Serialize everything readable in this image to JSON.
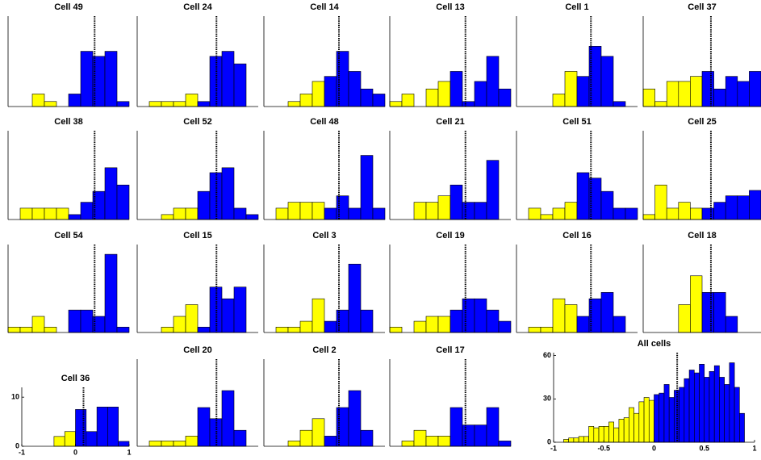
{
  "chart_data": [
    {
      "type": "histogram",
      "title": "Cell 49",
      "bins": [
        -1,
        -0.8,
        -0.6,
        -0.4,
        -0.2,
        0,
        0.2,
        0.4,
        0.6,
        0.8,
        1
      ],
      "values": [
        0,
        0,
        2.5,
        1,
        0,
        2.5,
        11,
        10,
        11,
        1
      ],
      "colors": [
        "#ffff00",
        "#ffff00",
        "#ffff00",
        "#ffff00",
        "#ffff00",
        "#0000ff",
        "#0000ff",
        "#0000ff",
        "#0000ff",
        "#0000ff"
      ],
      "threshold": 0.43,
      "xlim": [
        -1,
        1
      ],
      "ylim": [
        0,
        18
      ]
    },
    {
      "type": "histogram",
      "title": "Cell 24",
      "bins": [
        -1,
        -0.8,
        -0.6,
        -0.4,
        -0.2,
        0,
        0.2,
        0.4,
        0.6,
        0.8,
        1
      ],
      "values": [
        0,
        1,
        1,
        1,
        2.5,
        1,
        10,
        11,
        8.5,
        0
      ],
      "colors": [
        "#ffff00",
        "#ffff00",
        "#ffff00",
        "#ffff00",
        "#ffff00",
        "#0000ff",
        "#0000ff",
        "#0000ff",
        "#0000ff",
        "#0000ff"
      ],
      "threshold": 0.31,
      "xlim": [
        -1,
        1
      ],
      "ylim": [
        0,
        18
      ]
    },
    {
      "type": "histogram",
      "title": "Cell 14",
      "bins": [
        -1,
        -0.8,
        -0.6,
        -0.4,
        -0.2,
        0,
        0.2,
        0.4,
        0.6,
        0.8,
        1
      ],
      "values": [
        0,
        0,
        1,
        2.5,
        5,
        6,
        11,
        7,
        3.5,
        2.5
      ],
      "colors": [
        "#ffff00",
        "#ffff00",
        "#ffff00",
        "#ffff00",
        "#ffff00",
        "#0000ff",
        "#0000ff",
        "#0000ff",
        "#0000ff",
        "#0000ff"
      ],
      "threshold": 0.24,
      "xlim": [
        -1,
        1
      ],
      "ylim": [
        0,
        18
      ]
    },
    {
      "type": "histogram",
      "title": "Cell 13",
      "bins": [
        -1,
        -0.8,
        -0.6,
        -0.4,
        -0.2,
        0,
        0.2,
        0.4,
        0.6,
        0.8,
        1
      ],
      "values": [
        1,
        2.5,
        0,
        3.5,
        5,
        7,
        1,
        5,
        10,
        3.5
      ],
      "colors": [
        "#ffff00",
        "#ffff00",
        "#ffff00",
        "#ffff00",
        "#ffff00",
        "#0000ff",
        "#0000ff",
        "#0000ff",
        "#0000ff",
        "#0000ff"
      ],
      "threshold": 0.25,
      "xlim": [
        -1,
        1
      ],
      "ylim": [
        0,
        18
      ]
    },
    {
      "type": "histogram",
      "title": "Cell 1",
      "bins": [
        -1,
        -0.8,
        -0.6,
        -0.4,
        -0.2,
        0,
        0.2,
        0.4,
        0.6,
        0.8,
        1
      ],
      "values": [
        0,
        0,
        0,
        2.5,
        7,
        6,
        12,
        10,
        1,
        0
      ],
      "colors": [
        "#ffff00",
        "#ffff00",
        "#ffff00",
        "#ffff00",
        "#ffff00",
        "#0000ff",
        "#0000ff",
        "#0000ff",
        "#0000ff",
        "#0000ff"
      ],
      "threshold": 0.23,
      "xlim": [
        -1,
        1
      ],
      "ylim": [
        0,
        18
      ]
    },
    {
      "type": "histogram",
      "title": "Cell 37",
      "bins": [
        -1,
        -0.8,
        -0.6,
        -0.4,
        -0.2,
        0,
        0.2,
        0.4,
        0.6,
        0.8,
        1
      ],
      "values": [
        3.5,
        1,
        5,
        5,
        6,
        7,
        3.5,
        6,
        5,
        7
      ],
      "colors": [
        "#ffff00",
        "#ffff00",
        "#ffff00",
        "#ffff00",
        "#ffff00",
        "#0000ff",
        "#0000ff",
        "#0000ff",
        "#0000ff",
        "#0000ff"
      ],
      "threshold": 0.15,
      "xlim": [
        -1,
        1
      ],
      "ylim": [
        0,
        18
      ]
    },
    {
      "type": "histogram",
      "title": "Cell 38",
      "bins": [
        -1,
        -0.8,
        -0.6,
        -0.4,
        -0.2,
        0,
        0.2,
        0.4,
        0.6,
        0.8,
        1
      ],
      "values": [
        0,
        2.3,
        2.3,
        2.3,
        2.3,
        1,
        3.5,
        5.7,
        10.5,
        7
      ],
      "colors": [
        "#ffff00",
        "#ffff00",
        "#ffff00",
        "#ffff00",
        "#ffff00",
        "#0000ff",
        "#0000ff",
        "#0000ff",
        "#0000ff",
        "#0000ff"
      ],
      "threshold": 0.43,
      "xlim": [
        -1,
        1
      ],
      "ylim": [
        0,
        18
      ]
    },
    {
      "type": "histogram",
      "title": "Cell 52",
      "bins": [
        -1,
        -0.8,
        -0.6,
        -0.4,
        -0.2,
        0,
        0.2,
        0.4,
        0.6,
        0.8,
        1
      ],
      "values": [
        0,
        0,
        1,
        2.3,
        2.3,
        5.7,
        9.5,
        10.5,
        2.3,
        1
      ],
      "colors": [
        "#ffff00",
        "#ffff00",
        "#ffff00",
        "#ffff00",
        "#ffff00",
        "#0000ff",
        "#0000ff",
        "#0000ff",
        "#0000ff",
        "#0000ff"
      ],
      "threshold": 0.31,
      "xlim": [
        -1,
        1
      ],
      "ylim": [
        0,
        18
      ]
    },
    {
      "type": "histogram",
      "title": "Cell 48",
      "bins": [
        -1,
        -0.8,
        -0.6,
        -0.4,
        -0.2,
        0,
        0.2,
        0.4,
        0.6,
        0.8,
        1
      ],
      "values": [
        0,
        2.3,
        3.5,
        3.5,
        3.5,
        2.3,
        4.8,
        2.3,
        13,
        2.3
      ],
      "colors": [
        "#ffff00",
        "#ffff00",
        "#ffff00",
        "#ffff00",
        "#ffff00",
        "#0000ff",
        "#0000ff",
        "#0000ff",
        "#0000ff",
        "#0000ff"
      ],
      "threshold": 0.24,
      "xlim": [
        -1,
        1
      ],
      "ylim": [
        0,
        18
      ]
    },
    {
      "type": "histogram",
      "title": "Cell 21",
      "bins": [
        -1,
        -0.8,
        -0.6,
        -0.4,
        -0.2,
        0,
        0.2,
        0.4,
        0.6,
        0.8,
        1
      ],
      "values": [
        0,
        0,
        3.5,
        3.5,
        4.8,
        7,
        3.5,
        3.5,
        12,
        0
      ],
      "colors": [
        "#ffff00",
        "#ffff00",
        "#ffff00",
        "#ffff00",
        "#ffff00",
        "#0000ff",
        "#0000ff",
        "#0000ff",
        "#0000ff",
        "#0000ff"
      ],
      "threshold": 0.25,
      "xlim": [
        -1,
        1
      ],
      "ylim": [
        0,
        18
      ]
    },
    {
      "type": "histogram",
      "title": "Cell 51",
      "bins": [
        -1,
        -0.8,
        -0.6,
        -0.4,
        -0.2,
        0,
        0.2,
        0.4,
        0.6,
        0.8,
        1
      ],
      "values": [
        0,
        2.3,
        1,
        2.3,
        3.5,
        9.5,
        8.4,
        5.7,
        2.3,
        2.3
      ],
      "colors": [
        "#ffff00",
        "#ffff00",
        "#ffff00",
        "#ffff00",
        "#ffff00",
        "#0000ff",
        "#0000ff",
        "#0000ff",
        "#0000ff",
        "#0000ff"
      ],
      "threshold": 0.23,
      "xlim": [
        -1,
        1
      ],
      "ylim": [
        0,
        18
      ]
    },
    {
      "type": "histogram",
      "title": "Cell 25",
      "bins": [
        -1,
        -0.8,
        -0.6,
        -0.4,
        -0.2,
        0,
        0.2,
        0.4,
        0.6,
        0.8,
        1
      ],
      "values": [
        1,
        7,
        2.3,
        3.5,
        2.3,
        2.3,
        3.5,
        4.8,
        4.8,
        5.9
      ],
      "colors": [
        "#ffff00",
        "#ffff00",
        "#ffff00",
        "#ffff00",
        "#ffff00",
        "#0000ff",
        "#0000ff",
        "#0000ff",
        "#0000ff",
        "#0000ff"
      ],
      "threshold": 0.15,
      "xlim": [
        -1,
        1
      ],
      "ylim": [
        0,
        18
      ]
    },
    {
      "type": "histogram",
      "title": "Cell 54",
      "bins": [
        -1,
        -0.8,
        -0.6,
        -0.4,
        -0.2,
        0,
        0.2,
        0.4,
        0.6,
        0.8,
        1
      ],
      "values": [
        1.1,
        1.1,
        3.3,
        1.1,
        0,
        4.6,
        4.6,
        3.3,
        16,
        1.1
      ],
      "colors": [
        "#ffff00",
        "#ffff00",
        "#ffff00",
        "#ffff00",
        "#ffff00",
        "#0000ff",
        "#0000ff",
        "#0000ff",
        "#0000ff",
        "#0000ff"
      ],
      "threshold": 0.43,
      "xlim": [
        -1,
        1
      ],
      "ylim": [
        0,
        18
      ]
    },
    {
      "type": "histogram",
      "title": "Cell 15",
      "bins": [
        -1,
        -0.8,
        -0.6,
        -0.4,
        -0.2,
        0,
        0.2,
        0.4,
        0.6,
        0.8,
        1
      ],
      "values": [
        0,
        0,
        1.1,
        3.3,
        5.7,
        1.1,
        9.3,
        6.9,
        9.3,
        0
      ],
      "colors": [
        "#ffff00",
        "#ffff00",
        "#ffff00",
        "#ffff00",
        "#ffff00",
        "#0000ff",
        "#0000ff",
        "#0000ff",
        "#0000ff",
        "#0000ff"
      ],
      "threshold": 0.31,
      "xlim": [
        -1,
        1
      ],
      "ylim": [
        0,
        18
      ]
    },
    {
      "type": "histogram",
      "title": "Cell 3",
      "bins": [
        -1,
        -0.8,
        -0.6,
        -0.4,
        -0.2,
        0,
        0.2,
        0.4,
        0.6,
        0.8,
        1
      ],
      "values": [
        0,
        1.1,
        1.1,
        2.3,
        6.9,
        2.3,
        4.6,
        14,
        4.6,
        0
      ],
      "colors": [
        "#ffff00",
        "#ffff00",
        "#ffff00",
        "#ffff00",
        "#ffff00",
        "#0000ff",
        "#0000ff",
        "#0000ff",
        "#0000ff",
        "#0000ff"
      ],
      "threshold": 0.24,
      "xlim": [
        -1,
        1
      ],
      "ylim": [
        0,
        18
      ]
    },
    {
      "type": "histogram",
      "title": "Cell 19",
      "bins": [
        -1,
        -0.8,
        -0.6,
        -0.4,
        -0.2,
        0,
        0.2,
        0.4,
        0.6,
        0.8,
        1
      ],
      "values": [
        1.1,
        0,
        2.3,
        3.3,
        3.3,
        4.6,
        6.9,
        6.9,
        4.6,
        2.3
      ],
      "colors": [
        "#ffff00",
        "#ffff00",
        "#ffff00",
        "#ffff00",
        "#ffff00",
        "#0000ff",
        "#0000ff",
        "#0000ff",
        "#0000ff",
        "#0000ff"
      ],
      "threshold": 0.25,
      "xlim": [
        -1,
        1
      ],
      "ylim": [
        0,
        18
      ]
    },
    {
      "type": "histogram",
      "title": "Cell 16",
      "bins": [
        -1,
        -0.8,
        -0.6,
        -0.4,
        -0.2,
        0,
        0.2,
        0.4,
        0.6,
        0.8,
        1
      ],
      "values": [
        0,
        1.1,
        1.1,
        6.9,
        5.7,
        3.3,
        6.9,
        8.2,
        3.3,
        0
      ],
      "colors": [
        "#ffff00",
        "#ffff00",
        "#ffff00",
        "#ffff00",
        "#ffff00",
        "#0000ff",
        "#0000ff",
        "#0000ff",
        "#0000ff",
        "#0000ff"
      ],
      "threshold": 0.23,
      "xlim": [
        -1,
        1
      ],
      "ylim": [
        0,
        18
      ]
    },
    {
      "type": "histogram",
      "title": "Cell 18",
      "bins": [
        -1,
        -0.8,
        -0.6,
        -0.4,
        -0.2,
        0,
        0.2,
        0.4,
        0.6,
        0.8,
        1
      ],
      "values": [
        0,
        0,
        0,
        5.7,
        11.6,
        8.2,
        8.2,
        3.3,
        0,
        0
      ],
      "colors": [
        "#ffff00",
        "#ffff00",
        "#ffff00",
        "#ffff00",
        "#ffff00",
        "#0000ff",
        "#0000ff",
        "#0000ff",
        "#0000ff",
        "#0000ff"
      ],
      "threshold": 0.15,
      "xlim": [
        -1,
        1
      ],
      "ylim": [
        0,
        18
      ]
    },
    {
      "type": "histogram",
      "title": "Cell 36",
      "bins": [
        -1,
        -0.8,
        -0.6,
        -0.4,
        -0.2,
        0,
        0.2,
        0.4,
        0.6,
        0.8,
        1
      ],
      "values": [
        0,
        0,
        0,
        2,
        3,
        7.5,
        3,
        8,
        8,
        1
      ],
      "colors": [
        "#ffff00",
        "#ffff00",
        "#ffff00",
        "#ffff00",
        "#ffff00",
        "#0000ff",
        "#0000ff",
        "#0000ff",
        "#0000ff",
        "#0000ff"
      ],
      "threshold": 0.15,
      "xlim": [
        -1,
        1
      ],
      "ylim": [
        0,
        12
      ],
      "xticks": [
        -1,
        0,
        1
      ],
      "yticks": [
        0,
        10
      ]
    },
    {
      "type": "histogram",
      "title": "Cell 20",
      "bins": [
        -1,
        -0.8,
        -0.6,
        -0.4,
        -0.2,
        0,
        0.2,
        0.4,
        0.6,
        0.8,
        1
      ],
      "values": [
        0,
        1.1,
        1.1,
        1.1,
        2.1,
        8,
        5.7,
        11.5,
        3.3,
        0
      ],
      "colors": [
        "#ffff00",
        "#ffff00",
        "#ffff00",
        "#ffff00",
        "#ffff00",
        "#0000ff",
        "#0000ff",
        "#0000ff",
        "#0000ff",
        "#0000ff"
      ],
      "threshold": 0.31,
      "xlim": [
        -1,
        1
      ],
      "ylim": [
        0,
        18
      ]
    },
    {
      "type": "histogram",
      "title": "Cell 2",
      "bins": [
        -1,
        -0.8,
        -0.6,
        -0.4,
        -0.2,
        0,
        0.2,
        0.4,
        0.6,
        0.8,
        1
      ],
      "values": [
        0,
        0,
        1.1,
        3.3,
        5.7,
        2.1,
        8,
        11.5,
        3.3,
        0
      ],
      "colors": [
        "#ffff00",
        "#ffff00",
        "#ffff00",
        "#ffff00",
        "#ffff00",
        "#0000ff",
        "#0000ff",
        "#0000ff",
        "#0000ff",
        "#0000ff"
      ],
      "threshold": 0.24,
      "xlim": [
        -1,
        1
      ],
      "ylim": [
        0,
        18
      ]
    },
    {
      "type": "histogram",
      "title": "Cell 17",
      "bins": [
        -1,
        -0.8,
        -0.6,
        -0.4,
        -0.2,
        0,
        0.2,
        0.4,
        0.6,
        0.8,
        1
      ],
      "values": [
        0,
        1.1,
        3.3,
        2.1,
        2.1,
        8,
        4.4,
        4.4,
        8,
        1.1
      ],
      "colors": [
        "#ffff00",
        "#ffff00",
        "#ffff00",
        "#ffff00",
        "#ffff00",
        "#0000ff",
        "#0000ff",
        "#0000ff",
        "#0000ff",
        "#0000ff"
      ],
      "threshold": 0.25,
      "xlim": [
        -1,
        1
      ],
      "ylim": [
        0,
        18
      ]
    },
    {
      "type": "histogram",
      "title": "All cells",
      "bins": [
        -0.9,
        -0.85,
        -0.8,
        -0.75,
        -0.7,
        -0.65,
        -0.6,
        -0.55,
        -0.5,
        -0.45,
        -0.4,
        -0.35,
        -0.3,
        -0.25,
        -0.2,
        -0.15,
        -0.1,
        -0.05,
        0,
        0.05,
        0.1,
        0.15,
        0.2,
        0.25,
        0.3,
        0.35,
        0.4,
        0.45,
        0.5,
        0.55,
        0.6,
        0.65,
        0.7,
        0.75,
        0.8,
        0.85,
        0.9
      ],
      "values": [
        2,
        3,
        3,
        4,
        4,
        11,
        10,
        11,
        11,
        14,
        10,
        16,
        17,
        24,
        20,
        28,
        31,
        29,
        33,
        34,
        40,
        31,
        36,
        38,
        44,
        50,
        48,
        54,
        45,
        49,
        53,
        45,
        40,
        55,
        38,
        20
      ],
      "colors": [
        "#ffff00",
        "#ffff00",
        "#ffff00",
        "#ffff00",
        "#ffff00",
        "#ffff00",
        "#ffff00",
        "#ffff00",
        "#ffff00",
        "#ffff00",
        "#ffff00",
        "#ffff00",
        "#ffff00",
        "#ffff00",
        "#ffff00",
        "#ffff00",
        "#ffff00",
        "#ffff00",
        "#0000ff",
        "#0000ff",
        "#0000ff",
        "#0000ff",
        "#0000ff",
        "#0000ff",
        "#0000ff",
        "#0000ff",
        "#0000ff",
        "#0000ff",
        "#0000ff",
        "#0000ff",
        "#0000ff",
        "#0000ff",
        "#0000ff",
        "#0000ff",
        "#0000ff",
        "#0000ff"
      ],
      "threshold": 0.23,
      "xlim": [
        -1,
        1
      ],
      "ylim": [
        0,
        62
      ],
      "xticks": [
        -1,
        -0.5,
        0,
        0.5,
        1
      ],
      "yticks": [
        0,
        30,
        60
      ]
    }
  ]
}
